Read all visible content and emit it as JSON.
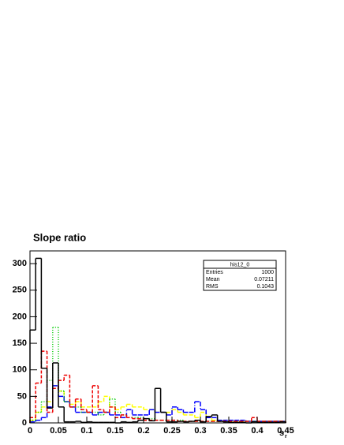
{
  "chart_data": {
    "type": "histogram",
    "title": "Slope ratio",
    "xlabel": "s",
    "xlabel_sub": "r",
    "bins": [
      0,
      0.01,
      0.02,
      0.03,
      0.04,
      0.05,
      0.06,
      0.07,
      0.08,
      0.09,
      0.1,
      0.11,
      0.12,
      0.13,
      0.14,
      0.15,
      0.16,
      0.17,
      0.18,
      0.19,
      0.2,
      0.21,
      0.22,
      0.23,
      0.24,
      0.25,
      0.26,
      0.27,
      0.28,
      0.29,
      0.3,
      0.31,
      0.32,
      0.33,
      0.34,
      0.35,
      0.36,
      0.37,
      0.38,
      0.39,
      0.4,
      0.41,
      0.42,
      0.43,
      0.44,
      0.45
    ],
    "series": [
      {
        "color": "#ffff00",
        "dash": "5,3",
        "values": [
          5,
          20,
          30,
          40,
          70,
          60,
          40,
          35,
          40,
          30,
          30,
          30,
          40,
          50,
          30,
          25,
          30,
          35,
          30,
          30,
          25,
          25,
          20,
          20,
          20,
          25,
          20,
          15,
          15,
          10,
          20,
          10,
          5,
          5,
          5,
          3,
          3,
          3,
          3,
          3,
          3,
          3,
          3,
          3,
          3
        ]
      },
      {
        "color": "#0000ff",
        "dash": "6,2,1,2",
        "values": [
          2,
          5,
          10,
          30,
          70,
          50,
          40,
          30,
          20,
          20,
          20,
          15,
          20,
          20,
          15,
          15,
          10,
          25,
          15,
          15,
          15,
          25,
          20,
          20,
          15,
          30,
          25,
          20,
          20,
          40,
          25,
          10,
          10,
          5,
          5,
          5,
          5,
          5,
          3,
          3,
          3,
          3,
          3,
          3,
          3
        ]
      },
      {
        "color": "#00cc00",
        "dash": "1,2",
        "values": [
          5,
          20,
          40,
          80,
          180,
          60,
          40,
          30,
          30,
          20,
          20,
          20,
          15,
          20,
          45,
          20,
          15,
          10,
          10,
          10,
          5,
          8,
          5,
          5,
          5,
          5,
          5,
          3,
          3,
          3,
          3,
          3,
          3,
          3,
          3,
          3,
          3,
          3,
          3,
          3,
          3,
          3,
          3,
          3,
          3
        ]
      },
      {
        "color": "#ee0000",
        "dash": "4,2",
        "values": [
          10,
          75,
          135,
          20,
          65,
          80,
          90,
          30,
          45,
          25,
          20,
          70,
          25,
          20,
          30,
          10,
          15,
          10,
          8,
          8,
          5,
          5,
          5,
          5,
          5,
          5,
          3,
          3,
          3,
          3,
          3,
          3,
          3,
          3,
          3,
          3,
          3,
          3,
          3,
          10,
          3,
          3,
          3,
          3,
          3
        ]
      },
      {
        "color": "#000000",
        "dash": "none",
        "values": [
          175,
          310,
          103,
          28,
          113,
          30,
          2,
          2,
          3,
          1,
          2,
          1,
          1,
          1,
          1,
          0,
          2,
          1,
          2,
          5,
          8,
          4,
          65,
          20,
          2,
          2,
          3,
          2,
          3,
          5,
          2,
          12,
          15,
          3,
          2,
          1,
          1,
          1,
          0,
          2,
          1,
          1,
          1,
          1,
          2
        ]
      }
    ],
    "xlim": [
      0,
      0.45
    ],
    "xticks": [
      0,
      0.05,
      0.1,
      0.15,
      0.2,
      0.25,
      0.3,
      0.35,
      0.4,
      0.45
    ],
    "ylim": [
      0,
      324
    ],
    "yticks": [
      0,
      50,
      100,
      150,
      200,
      250,
      300
    ],
    "stats": {
      "title": "his12_0",
      "rows": [
        [
          "Entries",
          1000
        ],
        [
          "Mean",
          0.07211
        ],
        [
          "RMS",
          0.1043
        ]
      ]
    }
  }
}
